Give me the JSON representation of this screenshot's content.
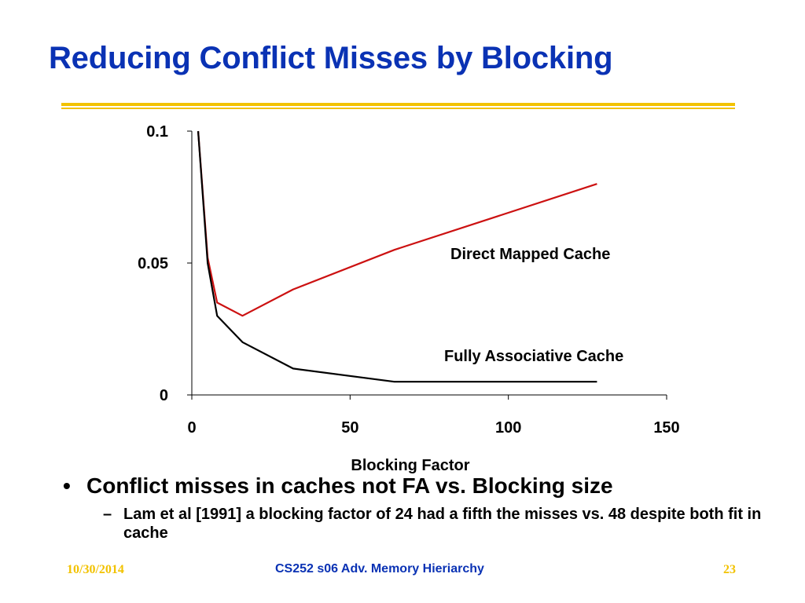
{
  "slide": {
    "title": "Reducing Conflict Misses by Blocking",
    "bullet_main": "Conflict misses in caches not FA vs. Blocking size",
    "bullet_sub": "Lam et al [1991] a blocking factor of 24 had a fifth the  misses vs. 48 despite both fit in cache",
    "bullet_symbol": "•",
    "dash_symbol": "–"
  },
  "footer": {
    "date": "10/30/2014",
    "center": "CS252 s06 Adv. Memory Hieriarchy",
    "page": "23"
  },
  "colors": {
    "title": "#0a32b4",
    "rule": "#f2c200",
    "direct_mapped_line": "#cc1111",
    "fully_assoc_line": "#000000"
  },
  "chart_data": {
    "type": "line",
    "xlabel": "Blocking Factor",
    "ylabel": "",
    "xlim": [
      0,
      150
    ],
    "ylim": [
      0,
      0.1
    ],
    "x_ticks": [
      "0",
      "50",
      "100",
      "150"
    ],
    "y_ticks": [
      "0",
      "0.05",
      "0.1"
    ],
    "grid": false,
    "series": [
      {
        "name": "Direct Mapped Cache",
        "color": "#cc1111",
        "x": [
          2,
          5,
          8,
          16,
          32,
          64,
          128
        ],
        "y": [
          0.1,
          0.052,
          0.035,
          0.03,
          0.04,
          0.055,
          0.08
        ]
      },
      {
        "name": "Fully Associative Cache",
        "color": "#000000",
        "x": [
          2,
          5,
          8,
          16,
          32,
          64,
          128
        ],
        "y": [
          0.1,
          0.05,
          0.03,
          0.02,
          0.01,
          0.005,
          0.005
        ]
      }
    ]
  }
}
